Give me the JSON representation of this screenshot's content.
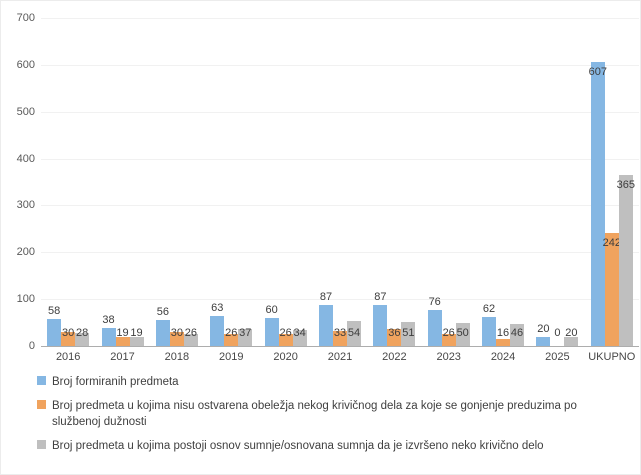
{
  "chart_data": {
    "type": "bar",
    "categories": [
      "2016",
      "2017",
      "2018",
      "2019",
      "2020",
      "2021",
      "2022",
      "2023",
      "2024",
      "2025",
      "UKUPNO"
    ],
    "series": [
      {
        "name": "Broj formiranih predmeta",
        "color": "#85b7e3",
        "values": [
          58,
          38,
          56,
          63,
          60,
          87,
          87,
          76,
          62,
          20,
          607
        ]
      },
      {
        "name": "Broj predmeta u kojima nisu ostvarena obeležja nekog krivičnog dela za koje se gonjenje preduzima po službenoj dužnosti",
        "color": "#f0a35e",
        "values": [
          30,
          19,
          30,
          26,
          26,
          33,
          36,
          26,
          16,
          0,
          242
        ]
      },
      {
        "name": "Broj predmeta u kojima postoji osnov sumnje/osnovana sumnja da je izvršeno neko krivično delo",
        "color": "#bfbfbf",
        "values": [
          28,
          19,
          26,
          37,
          34,
          54,
          51,
          50,
          46,
          20,
          365
        ]
      }
    ],
    "title": "",
    "xlabel": "",
    "ylabel": "",
    "ylim": [
      0,
      700
    ],
    "ytick_step": 100,
    "grid": true,
    "legend_position": "bottom",
    "data_labels": true,
    "colors": {
      "axis_text": "#595959",
      "label_text": "#3d3d3d",
      "gridline": "#f1f1f1",
      "axis_line": "#adadad"
    }
  }
}
